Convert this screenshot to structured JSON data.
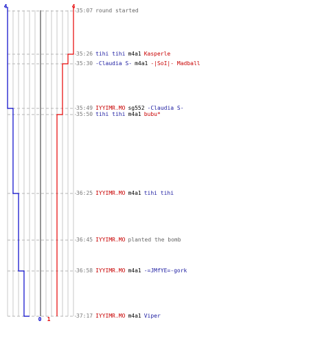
{
  "chart_data": {
    "type": "line",
    "title": "",
    "xlabel": "",
    "ylabel": "",
    "lanes": 12,
    "teams": [
      {
        "name": "",
        "color": "#0000c8",
        "start": 4,
        "end": 0,
        "steps": [
          "35:49",
          "36:25",
          "36:58",
          "37:17"
        ]
      },
      {
        "name": "",
        "color": "#e60000",
        "start": 4,
        "end": 1,
        "steps": [
          "35:26",
          "35:30",
          "35:50"
        ]
      }
    ],
    "axis_labels": {
      "blue_top": "4",
      "red_top": "4",
      "blue_bottom": "0",
      "red_bottom": "1"
    },
    "events": [
      {
        "time": "35:07",
        "parts": [
          {
            "text": "round started",
            "color": "gray"
          }
        ]
      },
      {
        "time": "35:26",
        "parts": [
          {
            "text": "tihi tihi",
            "color": "blue"
          },
          {
            "text": "m4a1",
            "color": "black"
          },
          {
            "text": "Kasperle",
            "color": "red"
          }
        ]
      },
      {
        "time": "35:30",
        "parts": [
          {
            "text": "-Claudia S-",
            "color": "blue"
          },
          {
            "text": "m4a1",
            "color": "black"
          },
          {
            "text": "-|SoI|- Madball",
            "color": "red"
          }
        ]
      },
      {
        "time": "35:49",
        "parts": [
          {
            "text": "IYYIMR.MO",
            "color": "red"
          },
          {
            "text": "sg552",
            "color": "black"
          },
          {
            "text": "-Claudia S-",
            "color": "blue"
          }
        ]
      },
      {
        "time": "35:50",
        "parts": [
          {
            "text": "tihi tihi",
            "color": "blue"
          },
          {
            "text": "m4a1",
            "color": "black"
          },
          {
            "text": "bubu*",
            "color": "red"
          }
        ]
      },
      {
        "time": "36:25",
        "parts": [
          {
            "text": "IYYIMR.MO",
            "color": "red"
          },
          {
            "text": "m4a1",
            "color": "black"
          },
          {
            "text": "tihi tihi",
            "color": "blue"
          }
        ]
      },
      {
        "time": "36:45",
        "parts": [
          {
            "text": "IYYIMR.MO",
            "color": "red"
          },
          {
            "text": "planted the bomb",
            "color": "gray"
          }
        ]
      },
      {
        "time": "36:58",
        "parts": [
          {
            "text": "IYYIMR.MO",
            "color": "red"
          },
          {
            "text": "m4a1",
            "color": "black"
          },
          {
            "text": "-=JMfYE=-gork",
            "color": "blue"
          }
        ]
      },
      {
        "time": "37:17",
        "parts": [
          {
            "text": "IYYIMR.MO",
            "color": "red"
          },
          {
            "text": "m4a1",
            "color": "black"
          },
          {
            "text": "Viper",
            "color": "blue"
          }
        ]
      }
    ]
  }
}
